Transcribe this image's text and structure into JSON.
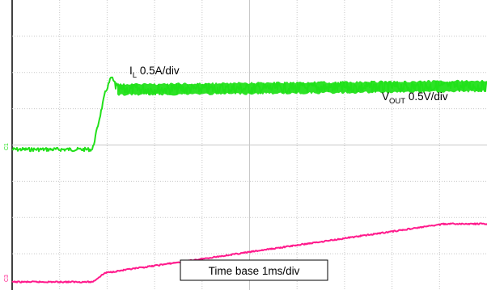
{
  "chart_data": {
    "type": "line",
    "title": "",
    "x_unit": "ms",
    "xlim": [
      -1.28,
      6.28
    ],
    "divisions": {
      "x": 10,
      "y": 8
    },
    "grid": true,
    "series": [
      {
        "name": "I",
        "name_subscript": "L",
        "scale_label": "0.5A/div",
        "unit": "A",
        "color": "#22e01a",
        "noise_band_divs": 0.3,
        "x": [
          -1.28,
          0.0,
          0.2,
          0.3,
          0.4,
          6.28
        ],
        "y": [
          0.0,
          0.0,
          1.55,
          2.0,
          1.65,
          1.75
        ]
      },
      {
        "name": "V",
        "name_subscript": "OUT",
        "scale_label": "0.5V/div",
        "unit": "V",
        "color": "#ff1a8c",
        "noise_band_divs": 0.1,
        "x": [
          -1.28,
          0.0,
          0.2,
          5.6,
          6.28
        ],
        "y": [
          0.0,
          0.0,
          0.25,
          1.6,
          1.6
        ]
      }
    ],
    "channel_markers": [
      "C1",
      "C3"
    ],
    "annotations": {
      "time_base": "Time base 1ms/div"
    }
  }
}
